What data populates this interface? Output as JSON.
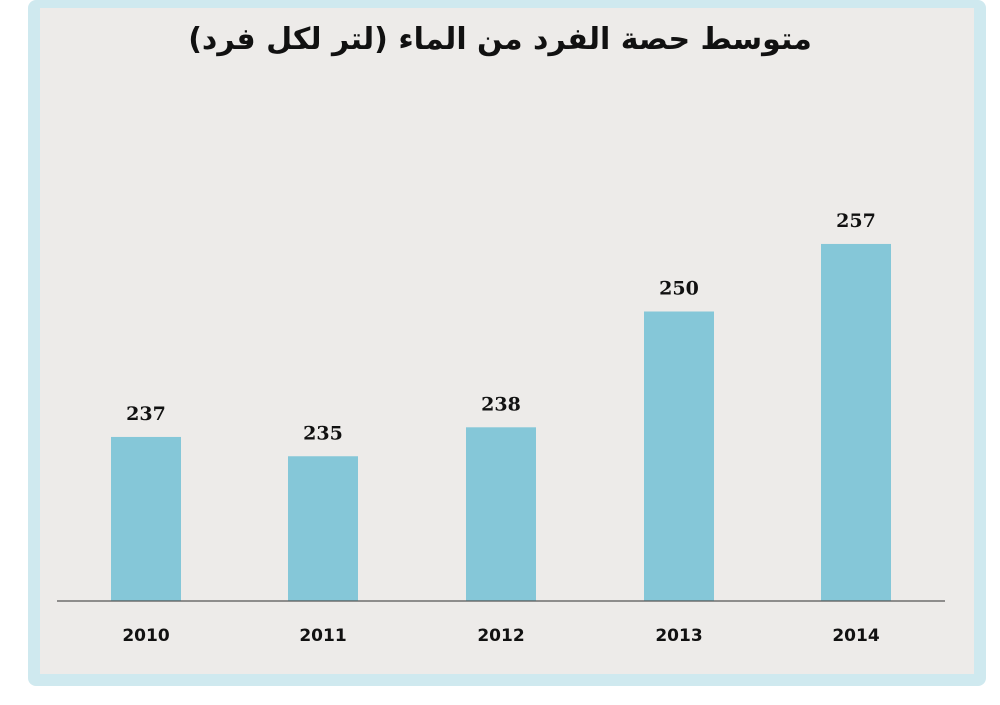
{
  "chart_data": {
    "type": "bar",
    "title": "متوسط حصة الفرد من الماء (لتر لكل فرد)",
    "categories": [
      "2010",
      "2011",
      "2012",
      "2013",
      "2014"
    ],
    "values": [
      237,
      235,
      238,
      250,
      257
    ],
    "xlabel": "",
    "ylabel": "",
    "ylim": [
      220,
      260
    ],
    "grid": false,
    "bar_color": "#85c7d8",
    "background_color": "#edebe9",
    "frame_color": "#cfe9ef"
  }
}
